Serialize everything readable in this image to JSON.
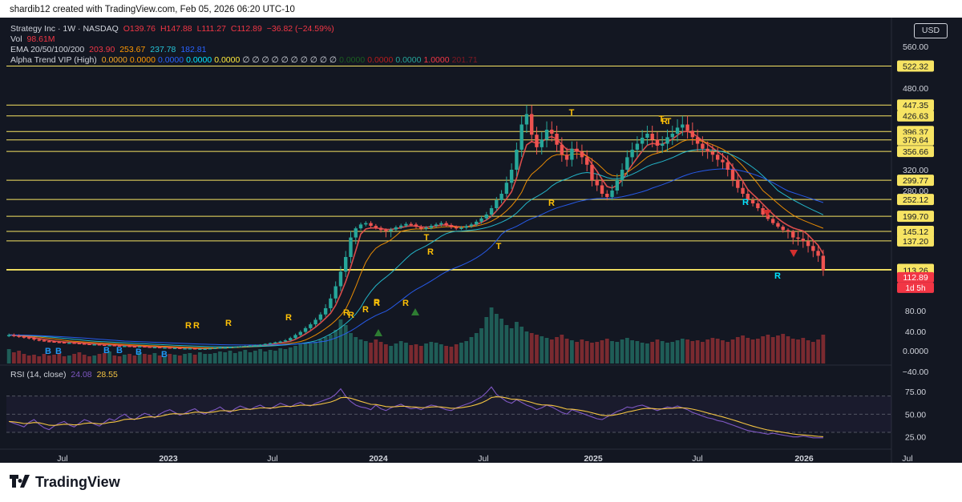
{
  "header": {
    "note": "shardib12 created with TradingView.com, Feb 05, 2026 06:20 UTC-10"
  },
  "legend": {
    "symbol": "Strategy Inc · 1W · NASDAQ",
    "open": "O139.76",
    "high": "H147.88",
    "low": "L111.27",
    "close": "C112.89",
    "change": "−36.82 (−24.59%)",
    "vol_label": "Vol",
    "vol_value": "98.61M",
    "ema_label": "EMA 20/50/100/200",
    "ema_values": [
      "203.90",
      "253.67",
      "237.78",
      "182.81"
    ],
    "alpha_label": "Alpha Trend VIP (High)",
    "alpha_values": [
      {
        "text": "0.0000",
        "color": "#f5a623"
      },
      {
        "text": "0.0000",
        "color": "#ff9800"
      },
      {
        "text": "0.0000",
        "color": "#2962ff"
      },
      {
        "text": "0.0000",
        "color": "#00e5ff"
      },
      {
        "text": "0.0000",
        "color": "#ffeb3b"
      },
      {
        "text": "∅ ∅ ∅ ∅ ∅ ∅ ∅ ∅ ∅ ∅",
        "color": "#d1d4dc"
      },
      {
        "text": "0.0000",
        "color": "#1b5e20"
      },
      {
        "text": "0.0000",
        "color": "#b71c1c"
      },
      {
        "text": "0.0000",
        "color": "#26a69a"
      },
      {
        "text": "1.0000",
        "color": "#f23645"
      },
      {
        "text": "201.71",
        "color": "#801922"
      }
    ],
    "rsi_label": "RSI (14, close)",
    "rsi_values": [
      "24.08",
      "28.55"
    ]
  },
  "currency": "USD",
  "footer": {
    "brand": "TradingView"
  },
  "colors": {
    "up": "#26a69a",
    "down": "#f23645",
    "background": "#131722",
    "level": "#f7e463",
    "rsi": "#7e57c2"
  },
  "chart_data": {
    "type": "candlestick",
    "title": "Strategy Inc · 1W · NASDAQ",
    "x_ticks": [
      "Jul",
      "2023",
      "Jul",
      "2024",
      "Jul",
      "2025",
      "Jul",
      "2026",
      "Jul"
    ],
    "y_ticks": [
      "560.00",
      "480.00",
      "320.00",
      "280.00",
      "80.00",
      "40.00",
      "0.0000",
      "−40.00"
    ],
    "horizontal_levels": [
      "522.32",
      "447.35",
      "426.63",
      "396.37",
      "379.64",
      "356.66",
      "299.77",
      "252.12",
      "199.70",
      "145.12",
      "137.20",
      "113.82",
      "113.26"
    ],
    "last_price": "112.89",
    "countdown": "1d 5h",
    "rsi_ticks": [
      "75.00",
      "50.00",
      "25.00"
    ],
    "rsi_bands": [
      70,
      50,
      30
    ],
    "rsi_range": [
      15,
      90
    ],
    "signal_labels": [
      "B",
      "B",
      "B",
      "B",
      "B",
      "B",
      "R",
      "R",
      "R",
      "R",
      "R",
      "R",
      "R",
      "R",
      "R",
      "R",
      "R",
      "R",
      "R",
      "R",
      "R",
      "T",
      "T",
      "T",
      "T",
      "T"
    ],
    "close_series": [
      48,
      47,
      46,
      45,
      44,
      42,
      41,
      40,
      39,
      38,
      37,
      36,
      36,
      35,
      34,
      33,
      32,
      32,
      31,
      30,
      30,
      29,
      28,
      28,
      27,
      26,
      27,
      26,
      25,
      25,
      24,
      24,
      23,
      23,
      22,
      22,
      22,
      21,
      21,
      21,
      22,
      23,
      24,
      24,
      25,
      26,
      27,
      28,
      29,
      30,
      31,
      33,
      35,
      37,
      39,
      41,
      44,
      48,
      52,
      57,
      62,
      68,
      75,
      82,
      90,
      100,
      112,
      124,
      140,
      156,
      170,
      175,
      165,
      158,
      150,
      146,
      152,
      160,
      166,
      172,
      170,
      162,
      155,
      158,
      165,
      170,
      175,
      168,
      160,
      156,
      158,
      164,
      170,
      180,
      192,
      205,
      225,
      250,
      270,
      295,
      320,
      360,
      410,
      430,
      390,
      365,
      380,
      400,
      392,
      370,
      350,
      340,
      362,
      356,
      345,
      330,
      300,
      290,
      270,
      260,
      280,
      300,
      320,
      345,
      360,
      372,
      384,
      392,
      380,
      368,
      372,
      385,
      392,
      404,
      410,
      398,
      385,
      372,
      362,
      356,
      350,
      340,
      335,
      320,
      300,
      285,
      270,
      250,
      240,
      225,
      205,
      190,
      175,
      162,
      150,
      145,
      140,
      139,
      137,
      133,
      129,
      125,
      113
    ],
    "volume_series": [
      18,
      14,
      16,
      12,
      10,
      11,
      9,
      12,
      10,
      11,
      13,
      9,
      10,
      12,
      14,
      11,
      9,
      10,
      12,
      13,
      15,
      10,
      9,
      11,
      12,
      10,
      14,
      12,
      11,
      13,
      10,
      9,
      12,
      11,
      10,
      12,
      13,
      11,
      14,
      12,
      12,
      13,
      15,
      14,
      16,
      13,
      15,
      17,
      14,
      16,
      18,
      15,
      17,
      16,
      19,
      18,
      20,
      22,
      24,
      26,
      25,
      27,
      30,
      33,
      36,
      42,
      55,
      48,
      38,
      33,
      30,
      28,
      26,
      30,
      27,
      24,
      22,
      25,
      28,
      26,
      23,
      24,
      22,
      25,
      27,
      26,
      24,
      22,
      21,
      24,
      26,
      28,
      33,
      38,
      44,
      58,
      70,
      62,
      56,
      48,
      44,
      52,
      46,
      40,
      38,
      36,
      34,
      32,
      30,
      33,
      36,
      31,
      29,
      27,
      30,
      28,
      26,
      27,
      29,
      31,
      28,
      27,
      30,
      32,
      29,
      28,
      26,
      25,
      27,
      30,
      28,
      26,
      27,
      29,
      31,
      30,
      28,
      29,
      27,
      30,
      32,
      31,
      29,
      27,
      30,
      33,
      35,
      32,
      30,
      31,
      34,
      36,
      33,
      35,
      37,
      34,
      31,
      30,
      32,
      29,
      27,
      30,
      36
    ],
    "rsi_series": [
      42,
      40,
      38,
      36,
      41,
      44,
      39,
      35,
      33,
      37,
      40,
      42,
      38,
      36,
      40,
      44,
      42,
      39,
      37,
      41,
      45,
      43,
      47,
      50,
      46,
      44,
      48,
      51,
      49,
      46,
      50,
      53,
      55,
      52,
      49,
      51,
      54,
      56,
      52,
      50,
      53,
      55,
      58,
      54,
      52,
      56,
      59,
      57,
      55,
      58,
      60,
      57,
      56,
      59,
      62,
      60,
      58,
      61,
      63,
      60,
      59,
      62,
      64,
      66,
      68,
      72,
      78,
      70,
      64,
      60,
      58,
      57,
      55,
      60,
      56,
      54,
      57,
      59,
      61,
      58,
      56,
      57,
      55,
      58,
      60,
      59,
      57,
      55,
      54,
      57,
      59,
      61,
      63,
      66,
      69,
      74,
      80,
      72,
      68,
      64,
      62,
      66,
      63,
      60,
      58,
      55,
      57,
      60,
      58,
      55,
      52,
      50,
      55,
      53,
      51,
      49,
      47,
      45,
      44,
      47,
      50,
      53,
      55,
      58,
      57,
      59,
      60,
      58,
      56,
      54,
      56,
      58,
      57,
      59,
      57,
      55,
      52,
      50,
      48,
      46,
      45,
      43,
      42,
      40,
      38,
      36,
      34,
      32,
      31,
      30,
      29,
      28,
      29,
      28,
      27,
      26,
      25,
      25,
      26,
      25,
      24,
      24,
      24
    ],
    "ema_series": [
      {
        "name": "EMA 20",
        "color": "#f23645"
      },
      {
        "name": "EMA 50",
        "color": "#ff9800"
      },
      {
        "name": "EMA 100",
        "color": "#26c6da"
      },
      {
        "name": "EMA 200",
        "color": "#2962ff"
      }
    ]
  }
}
